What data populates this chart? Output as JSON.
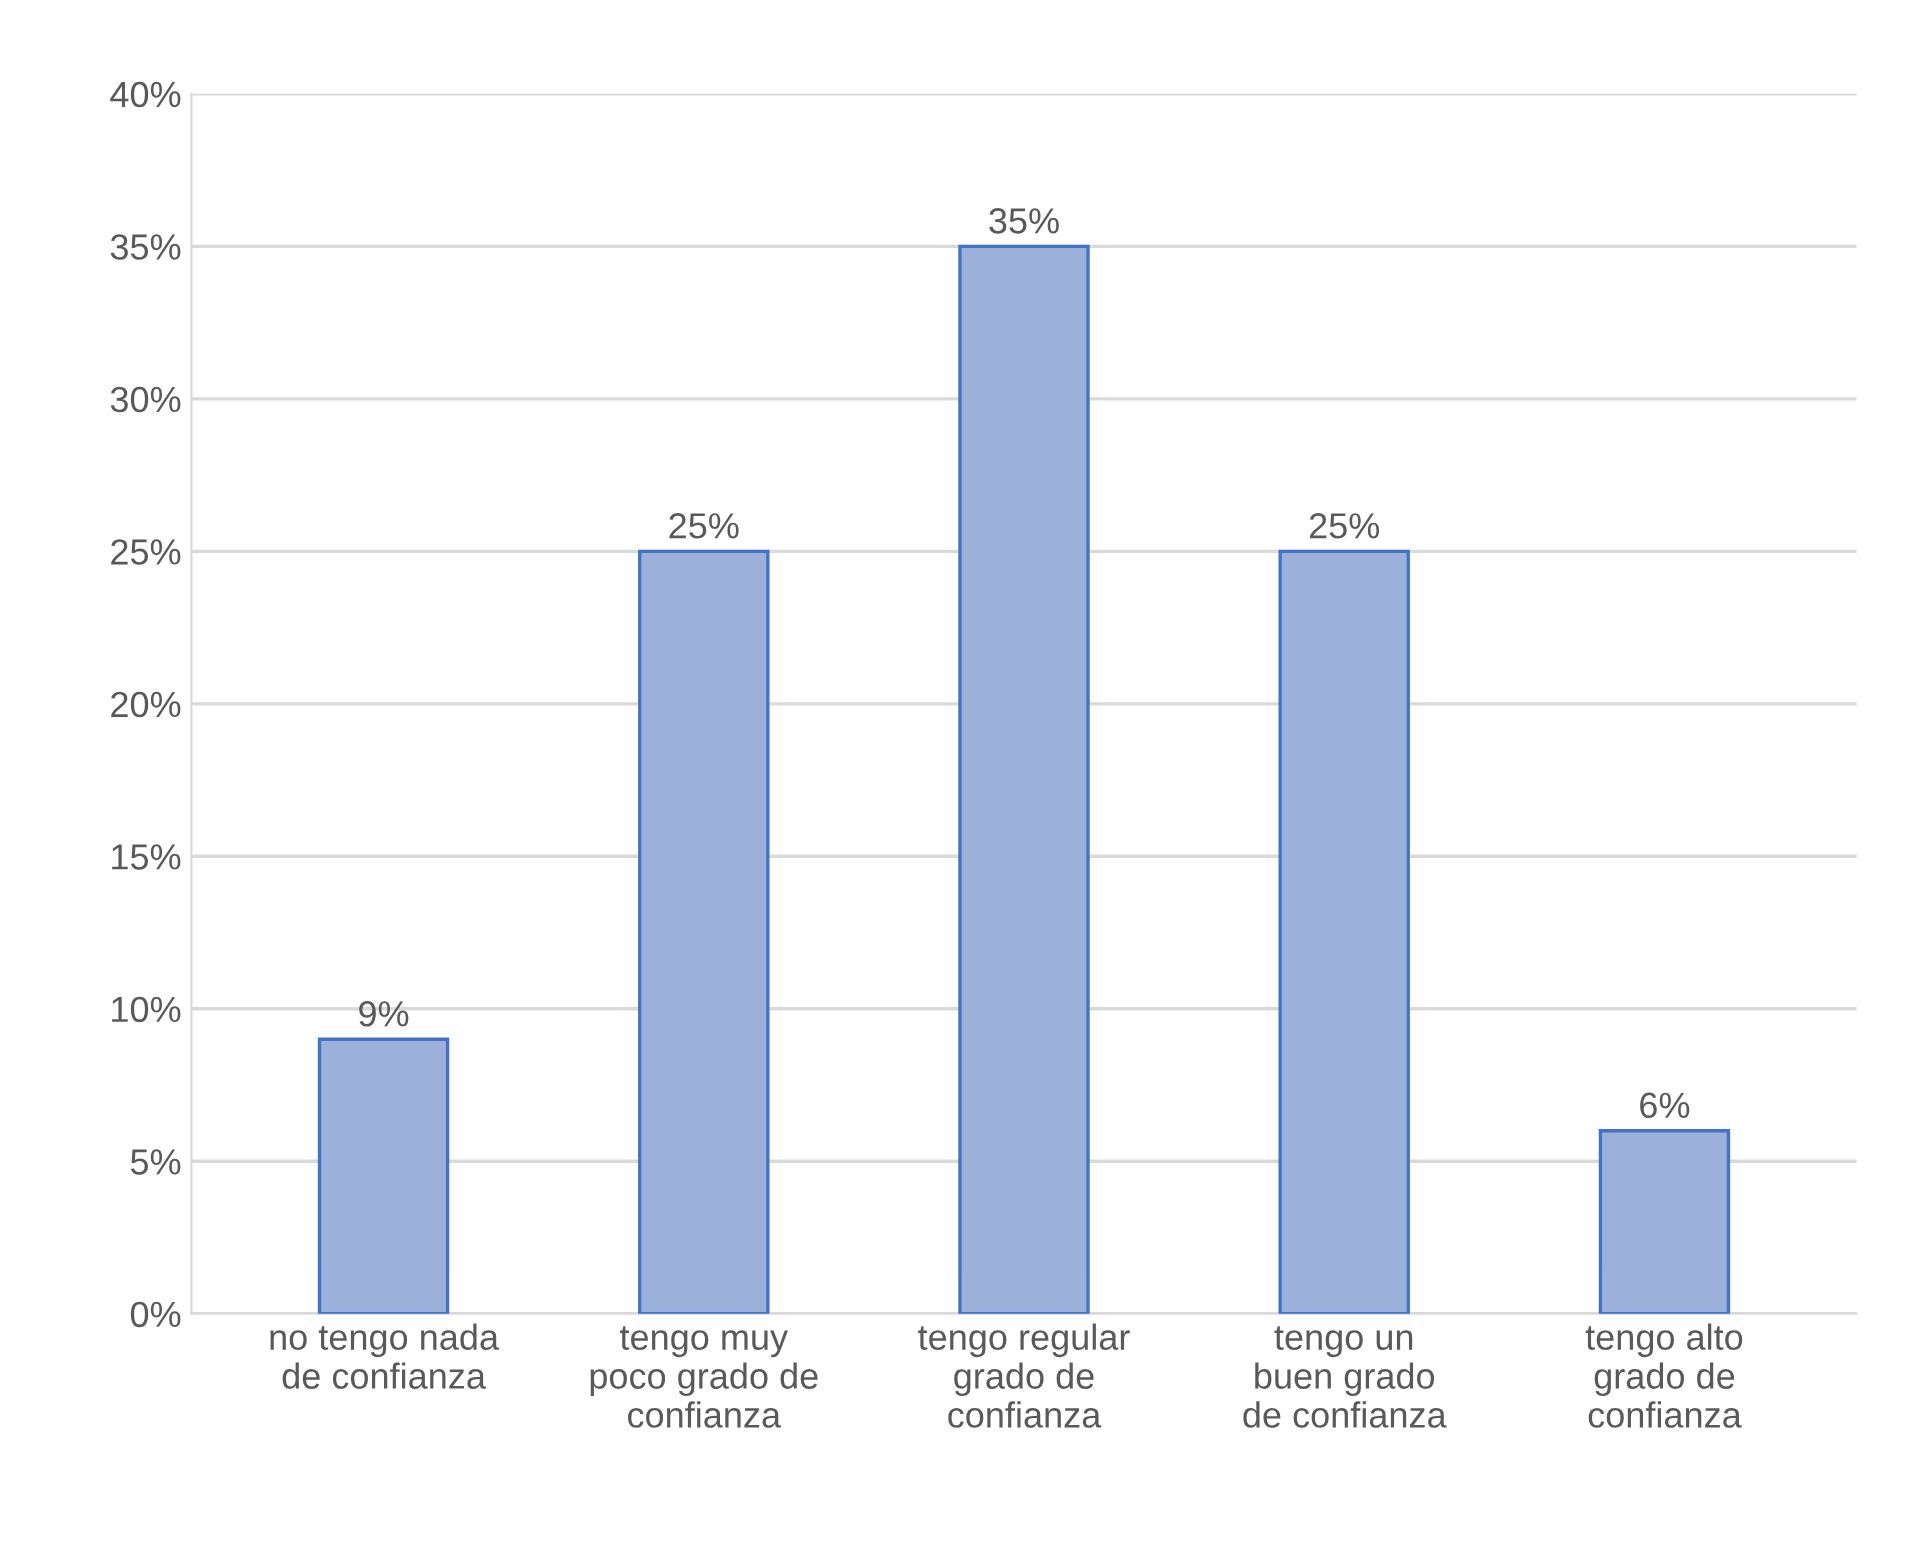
{
  "chart_data": {
    "type": "bar",
    "categories": [
      "no tengo nada\nde confianza",
      "tengo muy\npoco grado de\nconfianza",
      "tengo regular\ngrado de\nconfianza",
      "tengo un\nbuen grado\nde confianza",
      "tengo alto\ngrado de\nconfianza"
    ],
    "values": [
      9,
      25,
      35,
      25,
      6
    ],
    "value_labels": [
      "9%",
      "25%",
      "35%",
      "25%",
      "6%"
    ],
    "color": "#9bb1d9",
    "ylim": [
      0,
      40
    ],
    "yticks": [
      {
        "value": 0,
        "label": "0%"
      },
      {
        "value": 5,
        "label": "5%"
      },
      {
        "value": 10,
        "label": "10%"
      },
      {
        "value": 15,
        "label": "15%"
      },
      {
        "value": 20,
        "label": "20%"
      },
      {
        "value": 25,
        "label": "25%"
      },
      {
        "value": 30,
        "label": "30%"
      },
      {
        "value": 35,
        "label": "35%"
      },
      {
        "value": 40,
        "label": "40%"
      }
    ],
    "grid": "y"
  }
}
